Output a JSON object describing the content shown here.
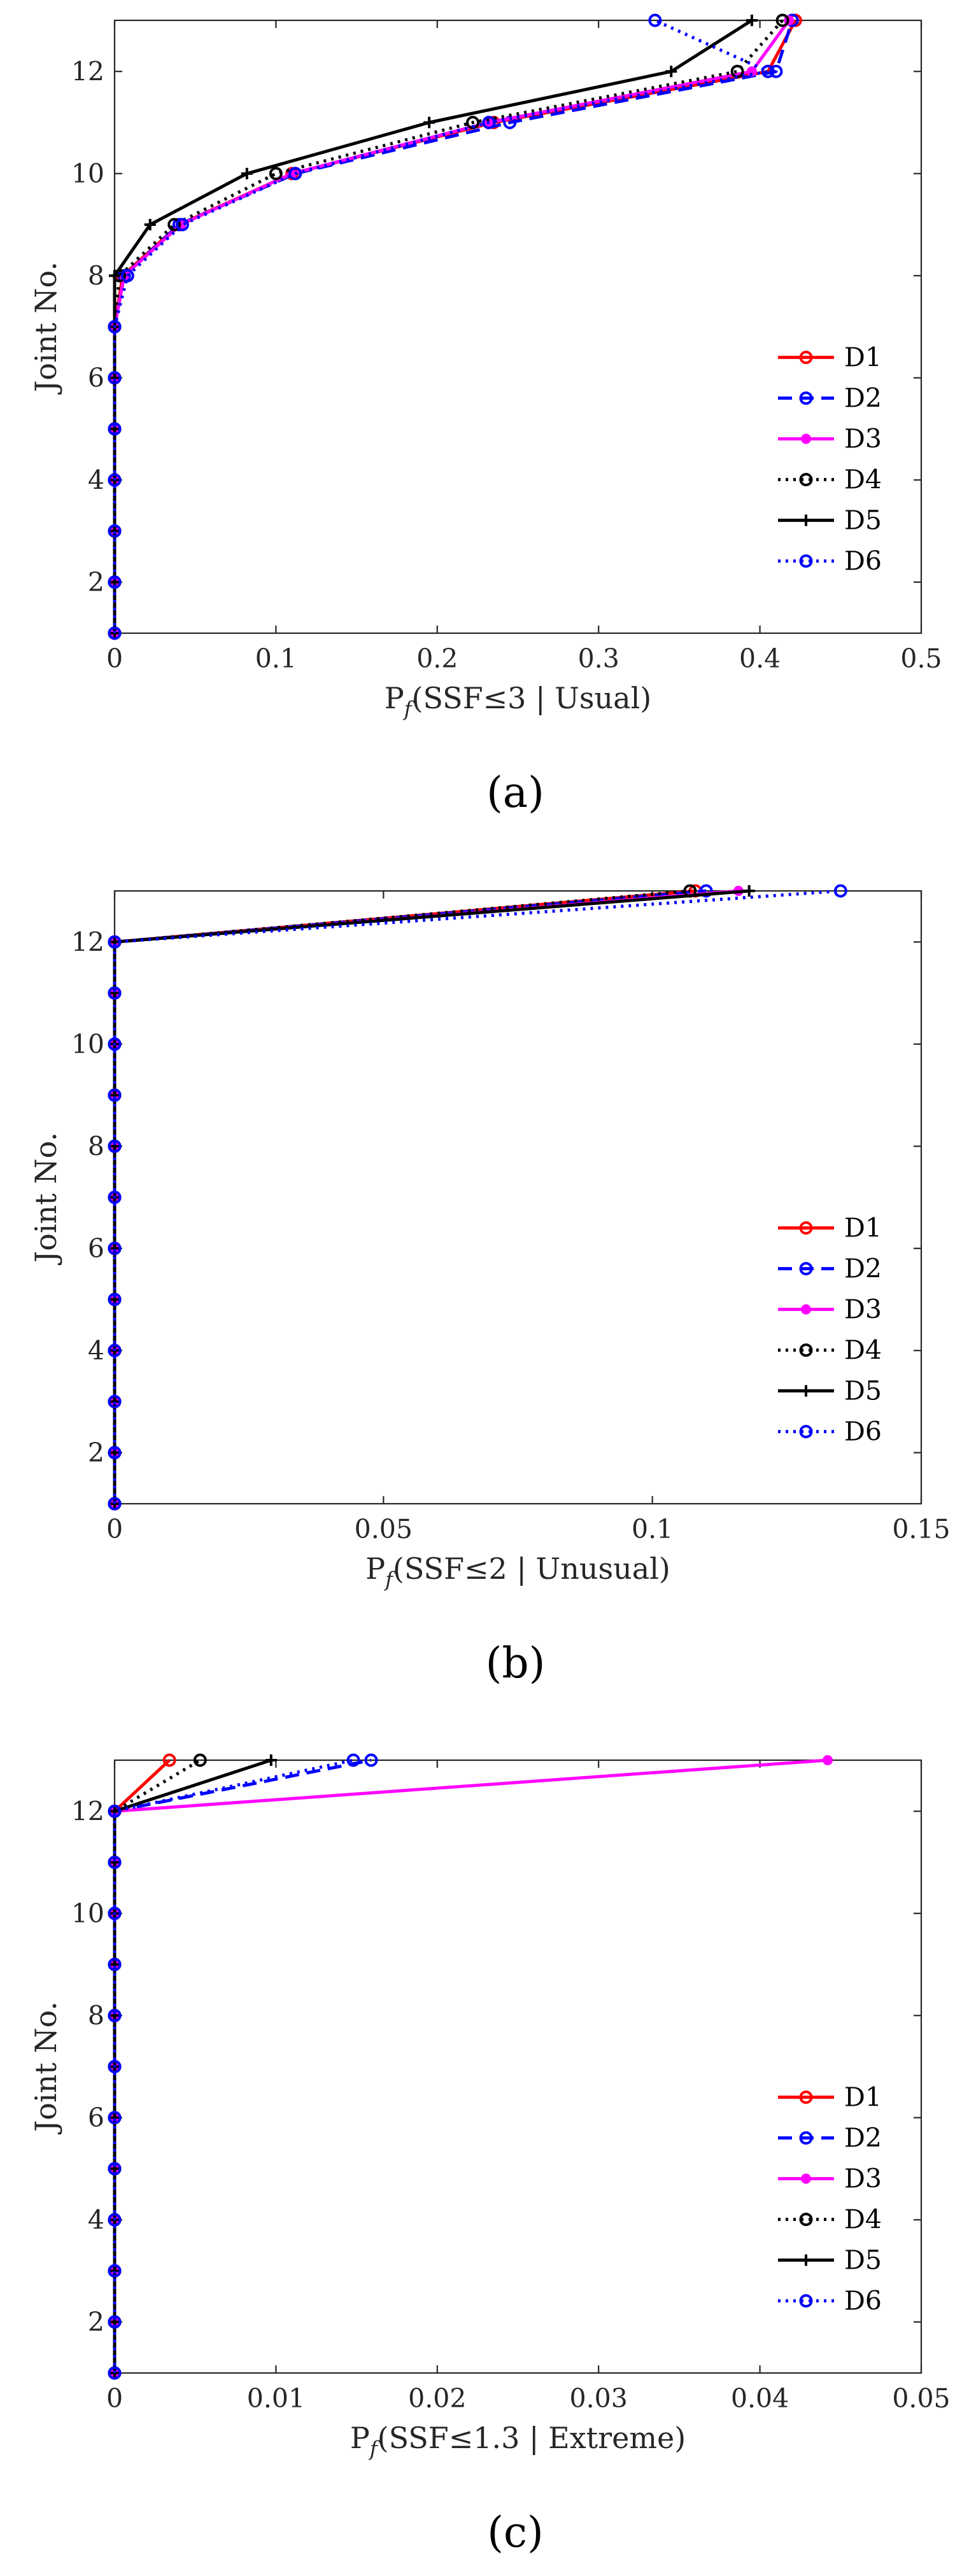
{
  "series_styles": [
    {
      "name": "D1",
      "color": "#ff0000",
      "dash": "",
      "marker": "circle"
    },
    {
      "name": "D2",
      "color": "#0000ff",
      "dash": "22,12",
      "marker": "circle"
    },
    {
      "name": "D3",
      "color": "#ff00ff",
      "dash": "",
      "marker": "dot"
    },
    {
      "name": "D4",
      "color": "#000000",
      "dash": "4,8",
      "marker": "circle"
    },
    {
      "name": "D5",
      "color": "#000000",
      "dash": "",
      "marker": "plus"
    },
    {
      "name": "D6",
      "color": "#0000ff",
      "dash": "4,8",
      "marker": "circle"
    }
  ],
  "chart_data": [
    {
      "type": "line",
      "panel_label": "(a)",
      "xlabel": "P_f(SSF≤3 | Usual)",
      "xlabel_prefix": "P",
      "xlabel_sub": "f",
      "xlabel_rest": "(SSF≤3 | Usual)",
      "ylabel": "Joint No.",
      "xlim": [
        0,
        0.5
      ],
      "ylim": [
        1,
        13
      ],
      "xticks": [
        0,
        0.1,
        0.2,
        0.3,
        0.4,
        0.5
      ],
      "xtick_labels": [
        "0",
        "0.1",
        "0.2",
        "0.3",
        "0.4",
        "0.5"
      ],
      "yticks": [
        2,
        4,
        6,
        8,
        10,
        12
      ],
      "ytick_labels": [
        "2",
        "4",
        "6",
        "8",
        "10",
        "12"
      ],
      "legend_position": "right-middle",
      "joints": [
        1,
        2,
        3,
        4,
        5,
        6,
        7,
        8,
        9,
        10,
        11,
        12,
        13
      ],
      "series": [
        {
          "name": "D1",
          "values": [
            0,
            0,
            0,
            0,
            0,
            0,
            0,
            0.005,
            0.04,
            0.11,
            0.235,
            0.405,
            0.422
          ]
        },
        {
          "name": "D2",
          "values": [
            0,
            0,
            0,
            0,
            0,
            0,
            0,
            0.006,
            0.04,
            0.112,
            0.245,
            0.41,
            0.42
          ]
        },
        {
          "name": "D3",
          "values": [
            0,
            0,
            0,
            0,
            0,
            0,
            0,
            0.006,
            0.041,
            0.11,
            0.232,
            0.395,
            0.418
          ]
        },
        {
          "name": "D4",
          "values": [
            0,
            0,
            0,
            0,
            0,
            0,
            0,
            0.003,
            0.037,
            0.1,
            0.222,
            0.386,
            0.414
          ]
        },
        {
          "name": "D5",
          "values": [
            0,
            0,
            0,
            0,
            0,
            0,
            0,
            0,
            0.022,
            0.082,
            0.195,
            0.345,
            0.395
          ]
        },
        {
          "name": "D6",
          "values": [
            0,
            0,
            0,
            0,
            0,
            0,
            0,
            0.008,
            0.042,
            0.112,
            0.232,
            0.405,
            0.335
          ]
        }
      ]
    },
    {
      "type": "line",
      "panel_label": "(b)",
      "xlabel": "P_f(SSF≤2 | Unusual)",
      "xlabel_prefix": "P",
      "xlabel_sub": "f",
      "xlabel_rest": "(SSF≤2 | Unusual)",
      "ylabel": "Joint No.",
      "xlim": [
        0,
        0.15
      ],
      "ylim": [
        1,
        13
      ],
      "xticks": [
        0,
        0.05,
        0.1,
        0.15
      ],
      "xtick_labels": [
        "0",
        "0.05",
        "0.1",
        "0.15"
      ],
      "yticks": [
        2,
        4,
        6,
        8,
        10,
        12
      ],
      "ytick_labels": [
        "2",
        "4",
        "6",
        "8",
        "10",
        "12"
      ],
      "legend_position": "right-middle",
      "joints": [
        1,
        2,
        3,
        4,
        5,
        6,
        7,
        8,
        9,
        10,
        11,
        12,
        13
      ],
      "series": [
        {
          "name": "D1",
          "values": [
            0,
            0,
            0,
            0,
            0,
            0,
            0,
            0,
            0,
            0,
            0,
            0,
            0.108
          ]
        },
        {
          "name": "D2",
          "values": [
            0,
            0,
            0,
            0,
            0,
            0,
            0,
            0,
            0,
            0,
            0,
            0,
            0.11
          ]
        },
        {
          "name": "D3",
          "values": [
            0,
            0,
            0,
            0,
            0,
            0,
            0,
            0,
            0,
            0,
            0,
            0,
            0.116
          ]
        },
        {
          "name": "D4",
          "values": [
            0,
            0,
            0,
            0,
            0,
            0,
            0,
            0,
            0,
            0,
            0,
            0,
            0.107
          ]
        },
        {
          "name": "D5",
          "values": [
            0,
            0,
            0,
            0,
            0,
            0,
            0,
            0,
            0,
            0,
            0,
            0,
            0.118
          ]
        },
        {
          "name": "D6",
          "values": [
            0,
            0,
            0,
            0,
            0,
            0,
            0,
            0,
            0,
            0,
            0,
            0,
            0.135
          ]
        }
      ]
    },
    {
      "type": "line",
      "panel_label": "(c)",
      "xlabel": "P_f(SSF≤1.3 | Extreme)",
      "xlabel_prefix": "P",
      "xlabel_sub": "f",
      "xlabel_rest": "(SSF≤1.3 | Extreme)",
      "ylabel": "Joint No.",
      "xlim": [
        0,
        0.05
      ],
      "ylim": [
        1,
        13
      ],
      "xticks": [
        0,
        0.01,
        0.02,
        0.03,
        0.04,
        0.05
      ],
      "xtick_labels": [
        "0",
        "0.01",
        "0.02",
        "0.03",
        "0.04",
        "0.05"
      ],
      "yticks": [
        2,
        4,
        6,
        8,
        10,
        12
      ],
      "ytick_labels": [
        "2",
        "4",
        "6",
        "8",
        "10",
        "12"
      ],
      "legend_position": "right-middle",
      "joints": [
        1,
        2,
        3,
        4,
        5,
        6,
        7,
        8,
        9,
        10,
        11,
        12,
        13
      ],
      "series": [
        {
          "name": "D1",
          "values": [
            0,
            0,
            0,
            0,
            0,
            0,
            0,
            0,
            0,
            0,
            0,
            0,
            0.0034
          ]
        },
        {
          "name": "D2",
          "values": [
            0,
            0,
            0,
            0,
            0,
            0,
            0,
            0,
            0,
            0,
            0,
            0,
            0.0159
          ]
        },
        {
          "name": "D3",
          "values": [
            0,
            0,
            0,
            0,
            0,
            0,
            0,
            0,
            0,
            0,
            0,
            0,
            0.0442
          ]
        },
        {
          "name": "D4",
          "values": [
            0,
            0,
            0,
            0,
            0,
            0,
            0,
            0,
            0,
            0,
            0,
            0,
            0.0053
          ]
        },
        {
          "name": "D5",
          "values": [
            0,
            0,
            0,
            0,
            0,
            0,
            0,
            0,
            0,
            0,
            0,
            0,
            0.0097
          ]
        },
        {
          "name": "D6",
          "values": [
            0,
            0,
            0,
            0,
            0,
            0,
            0,
            0,
            0,
            0,
            0,
            0,
            0.0148
          ]
        }
      ]
    }
  ]
}
